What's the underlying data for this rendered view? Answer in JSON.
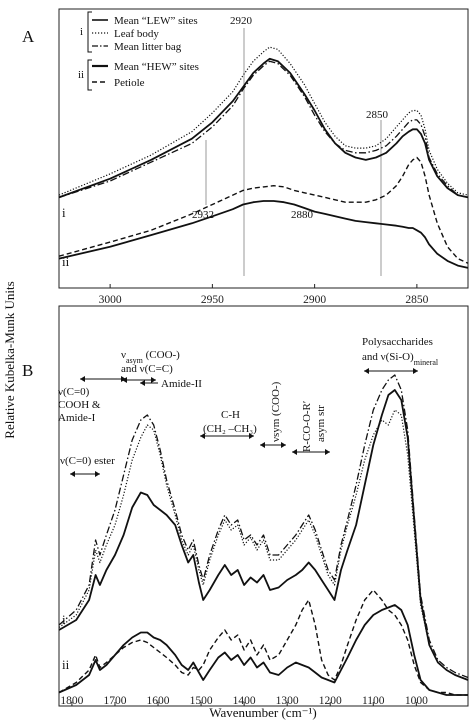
{
  "figure": {
    "ylabel": "Relative Kubelka-Munk Units",
    "xlabel": "Wavenumber (cm⁻¹)"
  },
  "panel_a": {
    "label": "A",
    "legend": {
      "group_i": "i",
      "group_ii": "ii",
      "entries": [
        "Mean “LEW” sites",
        "Leaf body",
        "Mean litter bag",
        "Mean “HEW” sites",
        "Petiole"
      ]
    },
    "peak_labels": [
      "2920",
      "2850",
      "2932",
      "2880"
    ],
    "trace_labels": [
      "i",
      "ii"
    ]
  },
  "panel_b": {
    "label": "B",
    "annotations": {
      "co_cooh_line1": "ν(C=0)",
      "co_cooh_line2": "COOH &",
      "co_cooh_line3": "Amide-I",
      "asym_line1": "ν",
      "asym_sub": "asym",
      "asym_rest": " (COO-)",
      "asym_line2": "and ν(C=C)",
      "amide2": "Amide-II",
      "ester_pre": "ν(C=0) ester",
      "ch_line1": "C-H",
      "ch_line2": "(CH₂ –CH₃)",
      "sym_label": "νsym (COO-)",
      "rcoor_line1": "R-CO-O-R′",
      "rcoor_line2": "asym str",
      "poly_line1": "Polysaccharides",
      "poly_line2_pre": "and ν(Si-O)",
      "poly_sub": "mineral"
    },
    "trace_labels": [
      "i",
      "ii"
    ]
  },
  "chart_data": [
    {
      "type": "line",
      "panel": "A",
      "xlabel": "",
      "ylabel": "Relative Kubelka-Munk Units",
      "x_reversed": true,
      "xlim": [
        3025,
        2825
      ],
      "x_ticks": [
        3000,
        2950,
        2900,
        2850
      ],
      "y_ticks_shown": false,
      "legend_position": "top-left",
      "reference_lines": [
        2920,
        2932,
        2850
      ],
      "series": [
        {
          "name": "Mean “LEW” sites",
          "group": "i",
          "style": "solid-thick",
          "x": [
            3025,
            3000,
            2980,
            2960,
            2950,
            2940,
            2935,
            2930,
            2925,
            2922,
            2918,
            2912,
            2905,
            2900,
            2895,
            2890,
            2885,
            2880,
            2875,
            2870,
            2865,
            2860,
            2857,
            2854,
            2852,
            2850,
            2848,
            2846,
            2844,
            2840,
            2835,
            2830,
            2825
          ],
          "y": [
            0.33,
            0.41,
            0.49,
            0.58,
            0.65,
            0.74,
            0.8,
            0.86,
            0.9,
            0.92,
            0.91,
            0.86,
            0.77,
            0.7,
            0.62,
            0.56,
            0.52,
            0.5,
            0.49,
            0.5,
            0.52,
            0.56,
            0.59,
            0.61,
            0.62,
            0.62,
            0.6,
            0.56,
            0.49,
            0.42,
            0.37,
            0.34,
            0.33
          ]
        },
        {
          "name": "Leaf body",
          "group": "i",
          "style": "dotted",
          "x": [
            3025,
            3000,
            2980,
            2960,
            2950,
            2940,
            2935,
            2930,
            2925,
            2922,
            2918,
            2912,
            2905,
            2900,
            2895,
            2890,
            2885,
            2880,
            2875,
            2870,
            2865,
            2860,
            2857,
            2854,
            2852,
            2850,
            2848,
            2846,
            2844,
            2840,
            2835,
            2830,
            2825
          ],
          "y": [
            0.34,
            0.43,
            0.51,
            0.61,
            0.69,
            0.78,
            0.85,
            0.91,
            0.95,
            0.97,
            0.96,
            0.9,
            0.81,
            0.73,
            0.65,
            0.59,
            0.55,
            0.54,
            0.54,
            0.55,
            0.58,
            0.63,
            0.66,
            0.69,
            0.7,
            0.7,
            0.68,
            0.62,
            0.53,
            0.45,
            0.39,
            0.35,
            0.34
          ]
        },
        {
          "name": "Mean litter bag",
          "group": "i",
          "style": "dash-dot",
          "x": [
            3025,
            3000,
            2980,
            2960,
            2950,
            2940,
            2935,
            2930,
            2925,
            2922,
            2918,
            2912,
            2905,
            2900,
            2895,
            2890,
            2885,
            2880,
            2875,
            2870,
            2865,
            2860,
            2857,
            2854,
            2852,
            2850,
            2848,
            2846,
            2844,
            2840,
            2835,
            2830,
            2825
          ],
          "y": [
            0.33,
            0.4,
            0.48,
            0.56,
            0.63,
            0.72,
            0.79,
            0.85,
            0.89,
            0.91,
            0.9,
            0.85,
            0.76,
            0.68,
            0.61,
            0.56,
            0.53,
            0.52,
            0.52,
            0.53,
            0.55,
            0.59,
            0.62,
            0.65,
            0.66,
            0.66,
            0.64,
            0.59,
            0.5,
            0.43,
            0.38,
            0.34,
            0.33
          ]
        },
        {
          "name": "Mean “HEW” sites",
          "group": "ii",
          "style": "solid-thick",
          "x": [
            3025,
            3000,
            2980,
            2960,
            2950,
            2940,
            2935,
            2930,
            2925,
            2920,
            2915,
            2910,
            2905,
            2900,
            2895,
            2890,
            2885,
            2880,
            2875,
            2870,
            2865,
            2860,
            2857,
            2854,
            2852,
            2850,
            2848,
            2846,
            2844,
            2840,
            2835,
            2830,
            2825
          ],
          "y": [
            0.07,
            0.12,
            0.17,
            0.22,
            0.25,
            0.28,
            0.3,
            0.31,
            0.315,
            0.315,
            0.31,
            0.3,
            0.285,
            0.27,
            0.26,
            0.25,
            0.24,
            0.23,
            0.225,
            0.22,
            0.215,
            0.21,
            0.205,
            0.2,
            0.2,
            0.19,
            0.18,
            0.16,
            0.13,
            0.09,
            0.06,
            0.04,
            0.03
          ]
        },
        {
          "name": "Petiole",
          "group": "ii",
          "style": "dashed",
          "x": [
            3025,
            3000,
            2980,
            2960,
            2950,
            2940,
            2935,
            2930,
            2925,
            2920,
            2915,
            2910,
            2905,
            2900,
            2895,
            2890,
            2885,
            2880,
            2875,
            2870,
            2865,
            2860,
            2857,
            2854,
            2852,
            2850,
            2848,
            2846,
            2844,
            2840,
            2835,
            2830,
            2825
          ],
          "y": [
            0.08,
            0.14,
            0.19,
            0.26,
            0.3,
            0.34,
            0.36,
            0.37,
            0.375,
            0.38,
            0.375,
            0.36,
            0.35,
            0.34,
            0.33,
            0.32,
            0.31,
            0.31,
            0.31,
            0.32,
            0.34,
            0.38,
            0.42,
            0.47,
            0.49,
            0.5,
            0.48,
            0.42,
            0.34,
            0.22,
            0.12,
            0.07,
            0.05
          ]
        }
      ]
    },
    {
      "type": "line",
      "panel": "B",
      "xlabel": "Wavenumber (cm⁻¹)",
      "ylabel": "Relative Kubelka-Munk Units",
      "x_reversed": true,
      "xlim": [
        1830,
        880
      ],
      "x_ticks": [
        1800,
        1700,
        1600,
        1500,
        1400,
        1300,
        1200,
        1100,
        1000
      ],
      "y_ticks_shown": false,
      "series": [
        {
          "name": "Mean “LEW” sites",
          "group": "i",
          "style": "solid-thick",
          "x": [
            1830,
            1790,
            1760,
            1745,
            1735,
            1720,
            1700,
            1680,
            1660,
            1640,
            1625,
            1610,
            1595,
            1580,
            1560,
            1545,
            1530,
            1518,
            1505,
            1495,
            1480,
            1460,
            1445,
            1430,
            1415,
            1400,
            1385,
            1370,
            1355,
            1340,
            1320,
            1300,
            1280,
            1265,
            1250,
            1235,
            1220,
            1205,
            1190,
            1175,
            1160,
            1140,
            1120,
            1100,
            1080,
            1065,
            1050,
            1035,
            1020,
            1005,
            990,
            970,
            950,
            930,
            910,
            880
          ],
          "y": [
            0.28,
            0.32,
            0.4,
            0.5,
            0.46,
            0.52,
            0.58,
            0.66,
            0.77,
            0.83,
            0.82,
            0.78,
            0.76,
            0.74,
            0.7,
            0.62,
            0.55,
            0.58,
            0.47,
            0.4,
            0.44,
            0.5,
            0.54,
            0.5,
            0.52,
            0.46,
            0.49,
            0.47,
            0.5,
            0.44,
            0.45,
            0.48,
            0.5,
            0.52,
            0.55,
            0.52,
            0.48,
            0.44,
            0.4,
            0.52,
            0.6,
            0.7,
            0.86,
            1.02,
            1.14,
            1.22,
            1.24,
            1.2,
            1.05,
            0.72,
            0.4,
            0.22,
            0.15,
            0.12,
            0.1,
            0.08
          ]
        },
        {
          "name": "Leaf body",
          "group": "i",
          "style": "dotted",
          "x": [
            1830,
            1790,
            1760,
            1745,
            1735,
            1720,
            1700,
            1680,
            1660,
            1640,
            1625,
            1610,
            1595,
            1580,
            1560,
            1545,
            1530,
            1518,
            1505,
            1495,
            1480,
            1460,
            1445,
            1430,
            1415,
            1400,
            1385,
            1370,
            1355,
            1340,
            1320,
            1300,
            1280,
            1265,
            1250,
            1235,
            1220,
            1205,
            1190,
            1175,
            1160,
            1140,
            1120,
            1100,
            1080,
            1065,
            1050,
            1035,
            1020,
            1005,
            990,
            970,
            950,
            930,
            910,
            880
          ],
          "y": [
            0.29,
            0.34,
            0.44,
            0.6,
            0.55,
            0.62,
            0.7,
            0.82,
            0.96,
            1.05,
            1.1,
            1.08,
            0.98,
            0.86,
            0.74,
            0.64,
            0.58,
            0.62,
            0.52,
            0.46,
            0.56,
            0.66,
            0.72,
            0.68,
            0.7,
            0.62,
            0.65,
            0.6,
            0.64,
            0.56,
            0.56,
            0.6,
            0.64,
            0.68,
            0.72,
            0.66,
            0.58,
            0.5,
            0.46,
            0.6,
            0.7,
            0.82,
            0.96,
            1.06,
            1.12,
            1.1,
            1.16,
            1.14,
            0.98,
            0.68,
            0.38,
            0.22,
            0.15,
            0.12,
            0.1,
            0.08
          ]
        },
        {
          "name": "Mean litter bag",
          "group": "i",
          "style": "dash-dot",
          "x": [
            1830,
            1790,
            1760,
            1745,
            1735,
            1720,
            1700,
            1680,
            1660,
            1640,
            1625,
            1610,
            1595,
            1580,
            1560,
            1545,
            1530,
            1518,
            1505,
            1495,
            1480,
            1460,
            1445,
            1430,
            1415,
            1400,
            1385,
            1370,
            1355,
            1340,
            1320,
            1300,
            1280,
            1265,
            1250,
            1235,
            1220,
            1205,
            1190,
            1175,
            1160,
            1140,
            1120,
            1100,
            1080,
            1065,
            1050,
            1035,
            1020,
            1005,
            990,
            970,
            950,
            930,
            910,
            880
          ],
          "y": [
            0.3,
            0.36,
            0.46,
            0.64,
            0.58,
            0.66,
            0.76,
            0.9,
            1.04,
            1.12,
            1.14,
            1.1,
            1.0,
            0.88,
            0.76,
            0.66,
            0.6,
            0.64,
            0.54,
            0.48,
            0.58,
            0.68,
            0.74,
            0.7,
            0.72,
            0.64,
            0.66,
            0.62,
            0.66,
            0.58,
            0.58,
            0.62,
            0.66,
            0.7,
            0.74,
            0.68,
            0.6,
            0.52,
            0.48,
            0.62,
            0.72,
            0.86,
            1.02,
            1.16,
            1.24,
            1.28,
            1.3,
            1.24,
            1.08,
            0.74,
            0.42,
            0.24,
            0.16,
            0.13,
            0.11,
            0.09
          ]
        },
        {
          "name": "Mean “HEW” sites",
          "group": "ii",
          "style": "solid-thick",
          "x": [
            1830,
            1790,
            1760,
            1745,
            1735,
            1720,
            1700,
            1680,
            1660,
            1640,
            1625,
            1610,
            1595,
            1580,
            1560,
            1545,
            1530,
            1518,
            1505,
            1495,
            1480,
            1460,
            1445,
            1430,
            1415,
            1400,
            1385,
            1370,
            1355,
            1340,
            1320,
            1300,
            1280,
            1265,
            1250,
            1235,
            1220,
            1205,
            1190,
            1175,
            1160,
            1140,
            1120,
            1100,
            1080,
            1065,
            1050,
            1035,
            1020,
            1005,
            990,
            970,
            950,
            930,
            910,
            880
          ],
          "y": [
            0.03,
            0.06,
            0.1,
            0.16,
            0.12,
            0.14,
            0.18,
            0.22,
            0.25,
            0.27,
            0.27,
            0.25,
            0.24,
            0.22,
            0.18,
            0.14,
            0.12,
            0.15,
            0.11,
            0.08,
            0.12,
            0.17,
            0.19,
            0.16,
            0.18,
            0.14,
            0.17,
            0.13,
            0.15,
            0.11,
            0.1,
            0.13,
            0.15,
            0.14,
            0.13,
            0.11,
            0.09,
            0.08,
            0.07,
            0.12,
            0.17,
            0.24,
            0.3,
            0.34,
            0.36,
            0.37,
            0.38,
            0.36,
            0.3,
            0.18,
            0.08,
            0.04,
            0.03,
            0.02,
            0.02,
            0.02
          ]
        },
        {
          "name": "Petiole",
          "group": "ii",
          "style": "dashed",
          "x": [
            1830,
            1790,
            1760,
            1745,
            1735,
            1720,
            1700,
            1680,
            1660,
            1640,
            1625,
            1610,
            1595,
            1580,
            1560,
            1545,
            1530,
            1518,
            1505,
            1495,
            1480,
            1460,
            1445,
            1430,
            1415,
            1400,
            1385,
            1370,
            1355,
            1340,
            1320,
            1300,
            1280,
            1265,
            1250,
            1235,
            1220,
            1205,
            1190,
            1175,
            1160,
            1140,
            1120,
            1100,
            1080,
            1065,
            1050,
            1035,
            1020,
            1005,
            990,
            970,
            950,
            930,
            910,
            880
          ],
          "y": [
            0.03,
            0.07,
            0.12,
            0.18,
            0.13,
            0.15,
            0.18,
            0.21,
            0.23,
            0.24,
            0.23,
            0.21,
            0.19,
            0.17,
            0.14,
            0.11,
            0.1,
            0.13,
            0.12,
            0.14,
            0.2,
            0.25,
            0.28,
            0.24,
            0.26,
            0.2,
            0.24,
            0.18,
            0.22,
            0.16,
            0.18,
            0.24,
            0.3,
            0.36,
            0.4,
            0.3,
            0.16,
            0.1,
            0.08,
            0.14,
            0.22,
            0.32,
            0.4,
            0.44,
            0.4,
            0.36,
            0.34,
            0.3,
            0.24,
            0.14,
            0.07,
            0.04,
            0.03,
            0.03,
            0.02,
            0.02
          ]
        }
      ]
    }
  ]
}
